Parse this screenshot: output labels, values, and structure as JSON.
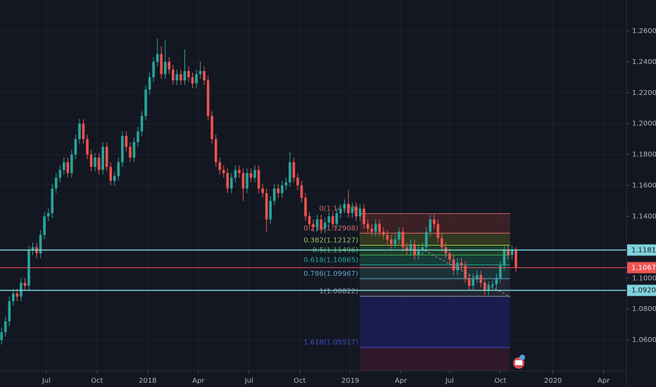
{
  "chart_data": {
    "type": "candlestick",
    "up_color": "#26a69a",
    "down_color": "#ef5350",
    "xlim": [
      -0.4,
      160
    ],
    "ylim": [
      1.04,
      1.28
    ],
    "grid": true,
    "xticks": [
      {
        "value": 11.5,
        "label": "Jul"
      },
      {
        "value": 24.5,
        "label": "Oct"
      },
      {
        "value": 37.5,
        "label": "2018"
      },
      {
        "value": 50.5,
        "label": "Apr"
      },
      {
        "value": 63.5,
        "label": "Jul"
      },
      {
        "value": 76.5,
        "label": "Oct"
      },
      {
        "value": 89.5,
        "label": "2019"
      },
      {
        "value": 102.5,
        "label": "Apr"
      },
      {
        "value": 115,
        "label": "Jul"
      },
      {
        "value": 128,
        "label": "Oct"
      },
      {
        "value": 141.5,
        "label": "2020"
      },
      {
        "value": 154.5,
        "label": "Apr"
      }
    ],
    "yticks": [
      {
        "value": 1.06,
        "label": "1.06000"
      },
      {
        "value": 1.08,
        "label": "1.08000"
      },
      {
        "value": 1.1,
        "label": "1.10000"
      },
      {
        "value": 1.14,
        "label": "1.14000"
      },
      {
        "value": 1.16,
        "label": "1.16000"
      },
      {
        "value": 1.18,
        "label": "1.18000"
      },
      {
        "value": 1.2,
        "label": "1.20000"
      },
      {
        "value": 1.22,
        "label": "1.22000"
      },
      {
        "value": 1.24,
        "label": "1.24000"
      },
      {
        "value": 1.26,
        "label": "1.26000"
      }
    ],
    "candles": [
      [
        1.06,
        1.068,
        1.057,
        1.065
      ],
      [
        1.065,
        1.075,
        1.062,
        1.072
      ],
      [
        1.072,
        1.088,
        1.069,
        1.085
      ],
      [
        1.085,
        1.093,
        1.082,
        1.09
      ],
      [
        1.09,
        1.093,
        1.085,
        1.088
      ],
      [
        1.088,
        1.1,
        1.085,
        1.097
      ],
      [
        1.097,
        1.1,
        1.092,
        1.095
      ],
      [
        1.095,
        1.121,
        1.092,
        1.118
      ],
      [
        1.118,
        1.123,
        1.115,
        1.12
      ],
      [
        1.12,
        1.123,
        1.113,
        1.116
      ],
      [
        1.116,
        1.131,
        1.113,
        1.128
      ],
      [
        1.128,
        1.143,
        1.125,
        1.14
      ],
      [
        1.14,
        1.145,
        1.137,
        1.142
      ],
      [
        1.142,
        1.161,
        1.139,
        1.158
      ],
      [
        1.158,
        1.168,
        1.155,
        1.165
      ],
      [
        1.165,
        1.173,
        1.162,
        1.17
      ],
      [
        1.17,
        1.178,
        1.167,
        1.175
      ],
      [
        1.175,
        1.178,
        1.165,
        1.168
      ],
      [
        1.168,
        1.183,
        1.165,
        1.18
      ],
      [
        1.18,
        1.193,
        1.177,
        1.19
      ],
      [
        1.19,
        1.203,
        1.187,
        1.2
      ],
      [
        1.2,
        1.203,
        1.187,
        1.19
      ],
      [
        1.19,
        1.193,
        1.177,
        1.18
      ],
      [
        1.18,
        1.183,
        1.169,
        1.172
      ],
      [
        1.172,
        1.181,
        1.169,
        1.178
      ],
      [
        1.178,
        1.181,
        1.167,
        1.17
      ],
      [
        1.17,
        1.188,
        1.167,
        1.185
      ],
      [
        1.185,
        1.188,
        1.169,
        1.172
      ],
      [
        1.172,
        1.175,
        1.16,
        1.163
      ],
      [
        1.163,
        1.169,
        1.16,
        1.166
      ],
      [
        1.166,
        1.178,
        1.163,
        1.175
      ],
      [
        1.175,
        1.195,
        1.172,
        1.192
      ],
      [
        1.192,
        1.195,
        1.182,
        1.185
      ],
      [
        1.185,
        1.188,
        1.175,
        1.178
      ],
      [
        1.178,
        1.191,
        1.175,
        1.188
      ],
      [
        1.188,
        1.198,
        1.185,
        1.195
      ],
      [
        1.195,
        1.208,
        1.192,
        1.205
      ],
      [
        1.205,
        1.225,
        1.202,
        1.222
      ],
      [
        1.222,
        1.233,
        1.219,
        1.23
      ],
      [
        1.23,
        1.243,
        1.227,
        1.24
      ],
      [
        1.24,
        1.255,
        1.237,
        1.245
      ],
      [
        1.245,
        1.25,
        1.229,
        1.232
      ],
      [
        1.232,
        1.254,
        1.229,
        1.24
      ],
      [
        1.24,
        1.243,
        1.232,
        1.235
      ],
      [
        1.235,
        1.238,
        1.225,
        1.228
      ],
      [
        1.228,
        1.235,
        1.225,
        1.232
      ],
      [
        1.232,
        1.235,
        1.225,
        1.228
      ],
      [
        1.228,
        1.248,
        1.225,
        1.234
      ],
      [
        1.234,
        1.237,
        1.227,
        1.23
      ],
      [
        1.23,
        1.233,
        1.223,
        1.226
      ],
      [
        1.226,
        1.235,
        1.223,
        1.232
      ],
      [
        1.232,
        1.24,
        1.229,
        1.234
      ],
      [
        1.234,
        1.237,
        1.225,
        1.228
      ],
      [
        1.228,
        1.231,
        1.202,
        1.205
      ],
      [
        1.205,
        1.208,
        1.187,
        1.19
      ],
      [
        1.19,
        1.193,
        1.172,
        1.175
      ],
      [
        1.175,
        1.178,
        1.167,
        1.17
      ],
      [
        1.17,
        1.173,
        1.165,
        1.168
      ],
      [
        1.168,
        1.171,
        1.155,
        1.158
      ],
      [
        1.158,
        1.168,
        1.155,
        1.165
      ],
      [
        1.165,
        1.173,
        1.162,
        1.17
      ],
      [
        1.17,
        1.173,
        1.165,
        1.168
      ],
      [
        1.168,
        1.171,
        1.15,
        1.158
      ],
      [
        1.158,
        1.171,
        1.155,
        1.168
      ],
      [
        1.168,
        1.171,
        1.162,
        1.165
      ],
      [
        1.165,
        1.173,
        1.162,
        1.17
      ],
      [
        1.17,
        1.173,
        1.155,
        1.158
      ],
      [
        1.158,
        1.161,
        1.152,
        1.155
      ],
      [
        1.155,
        1.158,
        1.13,
        1.138
      ],
      [
        1.138,
        1.153,
        1.135,
        1.15
      ],
      [
        1.15,
        1.161,
        1.147,
        1.158
      ],
      [
        1.158,
        1.161,
        1.152,
        1.155
      ],
      [
        1.155,
        1.163,
        1.152,
        1.16
      ],
      [
        1.16,
        1.165,
        1.157,
        1.162
      ],
      [
        1.162,
        1.182,
        1.159,
        1.175
      ],
      [
        1.175,
        1.178,
        1.162,
        1.165
      ],
      [
        1.165,
        1.168,
        1.157,
        1.16
      ],
      [
        1.16,
        1.163,
        1.149,
        1.152
      ],
      [
        1.152,
        1.155,
        1.137,
        1.14
      ],
      [
        1.14,
        1.143,
        1.132,
        1.135
      ],
      [
        1.135,
        1.138,
        1.13,
        1.133
      ],
      [
        1.133,
        1.141,
        1.13,
        1.138
      ],
      [
        1.138,
        1.141,
        1.129,
        1.132
      ],
      [
        1.132,
        1.139,
        1.129,
        1.136
      ],
      [
        1.136,
        1.143,
        1.133,
        1.14
      ],
      [
        1.14,
        1.143,
        1.132,
        1.135
      ],
      [
        1.135,
        1.145,
        1.132,
        1.142
      ],
      [
        1.142,
        1.148,
        1.139,
        1.145
      ],
      [
        1.145,
        1.151,
        1.142,
        1.148
      ],
      [
        1.148,
        1.157,
        1.139,
        1.142
      ],
      [
        1.142,
        1.149,
        1.139,
        1.146
      ],
      [
        1.146,
        1.149,
        1.137,
        1.14
      ],
      [
        1.14,
        1.148,
        1.137,
        1.145
      ],
      [
        1.145,
        1.148,
        1.132,
        1.135
      ],
      [
        1.135,
        1.138,
        1.129,
        1.132
      ],
      [
        1.132,
        1.135,
        1.127,
        1.13
      ],
      [
        1.13,
        1.138,
        1.127,
        1.135
      ],
      [
        1.135,
        1.138,
        1.127,
        1.13
      ],
      [
        1.13,
        1.133,
        1.125,
        1.128
      ],
      [
        1.128,
        1.131,
        1.122,
        1.125
      ],
      [
        1.125,
        1.128,
        1.119,
        1.122
      ],
      [
        1.122,
        1.128,
        1.119,
        1.125
      ],
      [
        1.125,
        1.133,
        1.122,
        1.13
      ],
      [
        1.13,
        1.133,
        1.117,
        1.12
      ],
      [
        1.12,
        1.123,
        1.115,
        1.118
      ],
      [
        1.118,
        1.125,
        1.115,
        1.122
      ],
      [
        1.122,
        1.125,
        1.112,
        1.115
      ],
      [
        1.115,
        1.121,
        1.112,
        1.118
      ],
      [
        1.118,
        1.123,
        1.115,
        1.12
      ],
      [
        1.12,
        1.133,
        1.117,
        1.13
      ],
      [
        1.13,
        1.141,
        1.127,
        1.138
      ],
      [
        1.138,
        1.141,
        1.132,
        1.135
      ],
      [
        1.135,
        1.138,
        1.123,
        1.126
      ],
      [
        1.126,
        1.129,
        1.117,
        1.12
      ],
      [
        1.12,
        1.123,
        1.113,
        1.116
      ],
      [
        1.116,
        1.119,
        1.109,
        1.112
      ],
      [
        1.112,
        1.115,
        1.102,
        1.105
      ],
      [
        1.105,
        1.113,
        1.102,
        1.11
      ],
      [
        1.11,
        1.113,
        1.105,
        1.108
      ],
      [
        1.108,
        1.111,
        1.097,
        1.1
      ],
      [
        1.1,
        1.103,
        1.092,
        1.095
      ],
      [
        1.095,
        1.103,
        1.092,
        1.1
      ],
      [
        1.1,
        1.105,
        1.097,
        1.102
      ],
      [
        1.102,
        1.105,
        1.094,
        1.097
      ],
      [
        1.097,
        1.1,
        1.089,
        1.092
      ],
      [
        1.092,
        1.098,
        1.089,
        1.095
      ],
      [
        1.095,
        1.099,
        1.092,
        1.096
      ],
      [
        1.096,
        1.103,
        1.093,
        1.1
      ],
      [
        1.1,
        1.111,
        1.097,
        1.108
      ],
      [
        1.108,
        1.121,
        1.105,
        1.118
      ],
      [
        1.118,
        1.121,
        1.112,
        1.115
      ],
      [
        1.115,
        1.121,
        1.112,
        1.118
      ],
      [
        1.118,
        1.12,
        1.104,
        1.107
      ]
    ],
    "hlines": [
      {
        "value": 1.11817,
        "color": "#7fd3dd"
      },
      {
        "value": 1.09207,
        "color": "#7fd3dd"
      },
      {
        "value": 1.10676,
        "color": "#ef5350"
      }
    ],
    "fib": {
      "x_range": [
        91.9,
        130.5
      ],
      "levels": [
        {
          "value": 1.1417,
          "label": "0(1.14170)",
          "color": "#c96a6a",
          "fill": "#4a2428"
        },
        {
          "value": 1.12908,
          "label": "0.236(1.12908)",
          "color": "#d96a6a",
          "fill": "#3c4420"
        },
        {
          "value": 1.12127,
          "label": "0.382(1.12127)",
          "color": "#9bbf5a",
          "fill": "#1f4a28"
        },
        {
          "value": 1.11496,
          "label": "0.5(1.11496)",
          "color": "#4caf50",
          "fill": "#18473d"
        },
        {
          "value": 1.10865,
          "label": "0.618(1.10865)",
          "color": "#26a69a",
          "fill": "#1e3c40"
        },
        {
          "value": 1.09967,
          "label": "0.786(1.09967)",
          "color": "#5aa9c4",
          "fill": "#262c35"
        },
        {
          "value": 1.08822,
          "label": "1(1.08822)",
          "color": "#9598a1",
          "fill": "#1c1f5c"
        },
        {
          "value": 1.05517,
          "label": "1.618(1.05517)",
          "color": "#3f4cc9",
          "fill": "#3a1a2c"
        }
      ]
    },
    "trendline": {
      "x": [
        108.5,
        130.5
      ],
      "y": [
        1.118,
        1.0878
      ]
    }
  }
}
